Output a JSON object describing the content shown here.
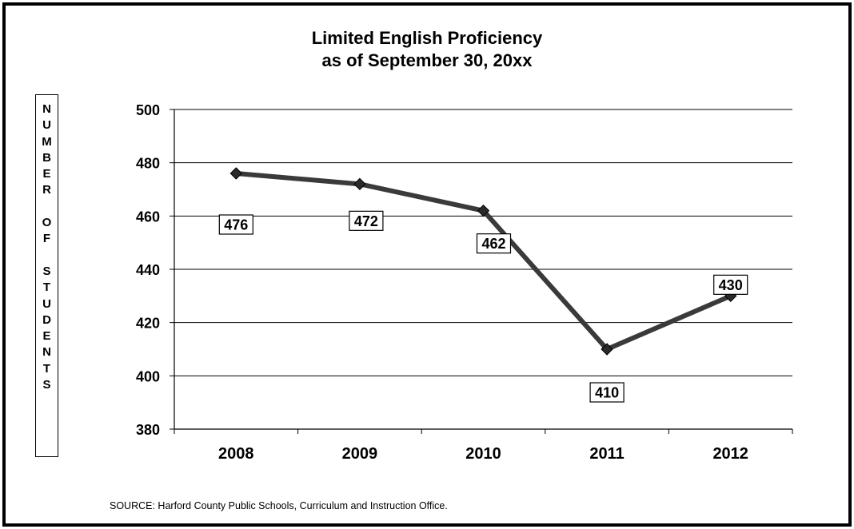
{
  "chart_data": {
    "type": "line",
    "title_lines": [
      "Limited English Proficiency",
      "as of September 30, 20xx"
    ],
    "ylabel": "NUMBER OF STUDENTS",
    "xlabel": "",
    "categories": [
      "2008",
      "2009",
      "2010",
      "2011",
      "2012"
    ],
    "series": [
      {
        "values": [
          476,
          472,
          462,
          410,
          430
        ]
      }
    ],
    "data_labels": [
      "476",
      "472",
      "462",
      "410",
      "430"
    ],
    "ylim": [
      380,
      500
    ],
    "yticks": [
      380,
      400,
      420,
      440,
      460,
      480,
      500
    ],
    "ytick_labels": [
      "380",
      "400",
      "420",
      "440",
      "460",
      "480",
      "500"
    ],
    "grid": true,
    "line_color": "#3a3a3a",
    "marker": "diamond"
  },
  "footer": {
    "source": "SOURCE: Harford County Public Schools, Curriculum and Instruction Office."
  }
}
